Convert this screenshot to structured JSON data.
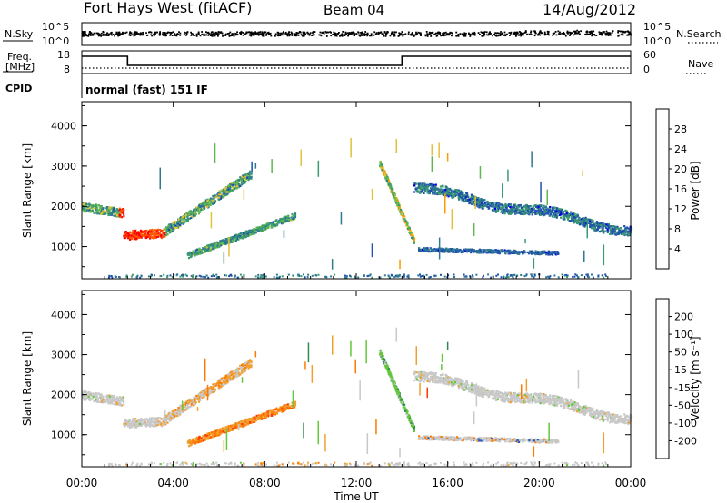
{
  "header": {
    "station": "Fort Hays West (fitACF)",
    "beam": "Beam 04",
    "date": "14/Aug/2012"
  },
  "ancillary": {
    "nsky_label": "N.Sky",
    "nsearch_label": "N.Search",
    "noise_ticks": [
      "10^5",
      "10^0"
    ],
    "freq_label": "Freq.",
    "freq_unit": "[MHz]",
    "freq_ticks": [
      "18",
      "8"
    ],
    "nave_label": "Nave",
    "nave_ticks": [
      "60",
      "0"
    ],
    "cpid_label": "CPID",
    "cpid_text": "normal (fast) 151 IF",
    "freq_step_hours": [
      2.0,
      14.0
    ],
    "freq_levels_mhz": [
      15.0,
      11.5
    ]
  },
  "chart_data": [
    {
      "type": "heatmap",
      "panel": "power",
      "ylabel": "Slant Range [km]",
      "yticks": [
        1000,
        2000,
        3000,
        4000
      ],
      "ylim": [
        200,
        4600
      ],
      "xlim": [
        0,
        24
      ],
      "colorbar": {
        "label": "Power [dB]",
        "ticks": [
          "28",
          "24",
          "20",
          "16",
          "12",
          "8",
          "4"
        ],
        "colors": [
          "#0000dd",
          "#1f4faf",
          "#2e7a8e",
          "#3a9b6e",
          "#5eb84f",
          "#e0c23a",
          "#ff9a00",
          "#ff5a00",
          "#ff0000"
        ]
      }
    },
    {
      "type": "heatmap",
      "panel": "velocity",
      "ylabel": "Slant Range [km]",
      "yticks": [
        1000,
        2000,
        3000,
        4000
      ],
      "ylim": [
        200,
        4600
      ],
      "xlim": [
        0,
        24
      ],
      "colorbar": {
        "label": "Velocity [m s⁻¹]",
        "ticks": [
          "200",
          "100",
          "50",
          "15",
          "-15",
          "-50",
          "-100",
          "-200"
        ],
        "colors": [
          "#1f2fd0",
          "#2a5cb8",
          "#2f8a4e",
          "#63c83a",
          "#c8c8c8",
          "#f0a030",
          "#ff7a00",
          "#ff3a00",
          "#e00000"
        ]
      }
    }
  ],
  "xaxis": {
    "label": "Time UT",
    "ticks": [
      "00:00",
      "04:00",
      "08:00",
      "12:00",
      "16:00",
      "20:00",
      "00:00"
    ]
  },
  "colors": {
    "groundscatter": "#c4c4c4",
    "frame": "#000000"
  }
}
